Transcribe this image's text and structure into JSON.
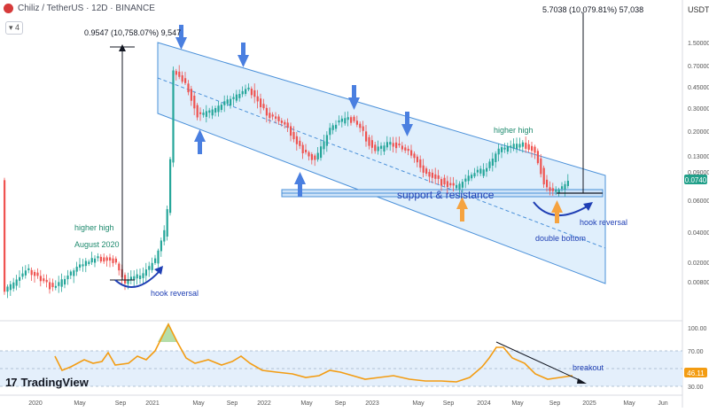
{
  "header": {
    "symbol_line": "Chiliz / TetherUS · 12D · BINANCE",
    "indicator_count": "4",
    "currency": "USDT"
  },
  "branding": {
    "logo_mark": "17",
    "name": "TradingView"
  },
  "price_axis": {
    "labels": [
      "1.50000",
      "0.70000",
      "0.45000",
      "0.30000",
      "0.20000",
      "0.13000",
      "0.09000",
      "0.06000",
      "0.04000",
      "0.02000",
      "0.00800"
    ],
    "last_price": "0.0740",
    "last_price_color": "#22a08a"
  },
  "rsi_axis": {
    "labels": [
      "100.00",
      "70.00",
      "30.00"
    ],
    "current": "46.11",
    "current_color": "#f39c12"
  },
  "time_axis": {
    "labels": [
      "2020",
      "May",
      "Sep",
      "2021",
      "May",
      "Sep",
      "2022",
      "May",
      "Sep",
      "2023",
      "May",
      "Sep",
      "2024",
      "May",
      "Sep",
      "2025",
      "May",
      "Jun"
    ]
  },
  "annotations": {
    "measure_left": "0.9547 (10,758.07%) 9,547",
    "measure_right": "5.7038 (10,079.81%) 57,038",
    "higher_high_left": "higher high",
    "august": "August 2020",
    "hook_reversal_left": "hook reversal",
    "higher_high_right": "higher high",
    "support_resistance": "support & resistance",
    "hook_reversal_right": "hook reversal",
    "double_bottom": "double bottom",
    "breakout": "breakout"
  },
  "colors": {
    "up": "#26a69a",
    "down": "#ef5350",
    "channel_fill": "#d6e9fb",
    "channel_line": "#4a90d9",
    "arrow_blue": "#4a7fe0",
    "arrow_orange": "#f5a340",
    "rsi_line": "#f39c12",
    "annotation_blue": "#1f3fb4",
    "annotation_green": "#1e8a6e"
  }
}
